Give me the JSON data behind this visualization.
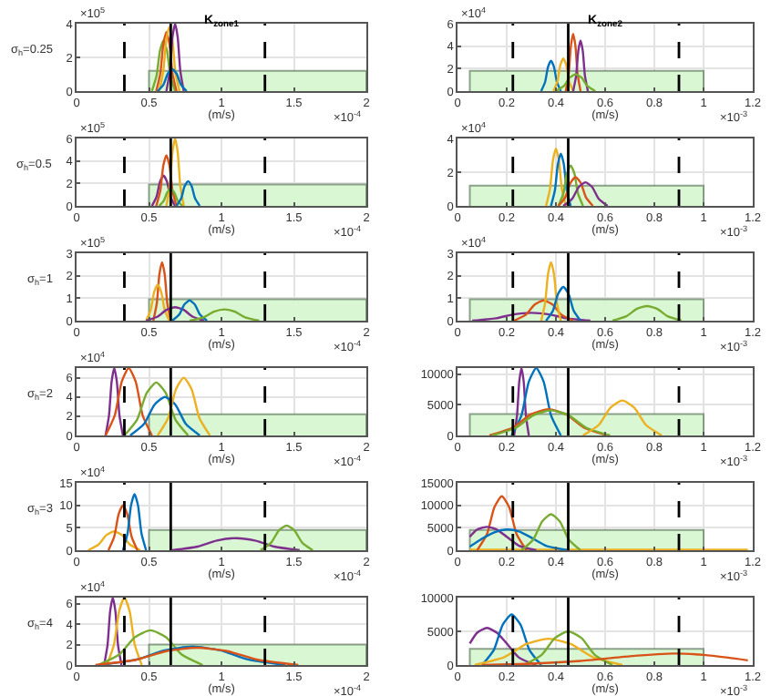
{
  "chart_data": [
    {
      "type": "line",
      "title": "K$_{zone1}$",
      "ylabel": "σ$_{h}$=0.25",
      "xlabel": "(m/s)",
      "annotations": [
        "×10$^{5}$",
        "×10$^{-4}$"
      ],
      "xlim": [
        0,
        2
      ],
      "xticks": [
        0,
        0.5,
        1,
        1.5,
        2
      ],
      "ylim": [
        0,
        4
      ],
      "yticks": [
        0,
        2,
        4
      ],
      "grid": true,
      "ref_lines": [
        {
          "axis": "x",
          "value": 0.33,
          "color": "#000000",
          "line_style": "dashed"
        },
        {
          "axis": "x",
          "value": 1.3,
          "color": "#000000",
          "line_style": "dashed"
        },
        {
          "axis": "x",
          "value": 0.65,
          "color": "#000000",
          "line_style": "solid"
        }
      ],
      "series": [
        {
          "type": "area",
          "color": "#d9f7d2",
          "x": [
            0.5,
            0.5,
            2,
            2
          ],
          "values": [
            0,
            1.2,
            1.2,
            0
          ]
        },
        {
          "color": "#77ac30",
          "x": [
            0.52,
            0.552,
            0.576,
            0.6,
            0.624,
            0.648,
            0.68
          ],
          "values": [
            0,
            0.9,
            2.4,
            3,
            2.4,
            0.9,
            0
          ]
        },
        {
          "color": "#d95319",
          "x": [
            0.55,
            0.578,
            0.599,
            0.62,
            0.641,
            0.662,
            0.69
          ],
          "values": [
            0,
            1.05,
            2.8,
            3.5,
            2.8,
            1.05,
            0
          ]
        },
        {
          "color": "#edb120",
          "x": [
            0.57,
            0.598,
            0.619,
            0.64,
            0.661,
            0.682,
            0.71
          ],
          "values": [
            0,
            1.14,
            3.04,
            3.8,
            3.04,
            1.14,
            0
          ]
        },
        {
          "color": "#7e2f8e",
          "x": [
            0.62,
            0.644,
            0.662,
            0.68,
            0.698,
            0.716,
            0.74
          ],
          "values": [
            0,
            1.2,
            3.2,
            4,
            3.2,
            1.2,
            0
          ]
        },
        {
          "color": "#0072bd",
          "x": [
            0.56,
            0.6,
            0.63,
            0.66,
            0.69,
            0.72,
            0.76
          ],
          "values": [
            0,
            0.39,
            1.04,
            1.3,
            1.04,
            0.39,
            0
          ]
        }
      ]
    },
    {
      "type": "line",
      "title": "K$_{zone2}$",
      "xlabel": "(m/s)",
      "annotations": [
        "×10$^{4}$",
        "×10$^{-3}$"
      ],
      "xlim": [
        0,
        1.2
      ],
      "xticks": [
        0,
        0.2,
        0.4,
        0.6,
        0.8,
        1,
        1.2
      ],
      "ylim": [
        0,
        6
      ],
      "yticks": [
        0,
        2,
        4,
        6
      ],
      "grid": true,
      "ref_lines": [
        {
          "axis": "x",
          "value": 0.225,
          "color": "#000000",
          "line_style": "dashed"
        },
        {
          "axis": "x",
          "value": 0.9,
          "color": "#000000",
          "line_style": "dashed"
        },
        {
          "axis": "x",
          "value": 0.45,
          "color": "#000000",
          "line_style": "solid"
        }
      ],
      "series": [
        {
          "type": "area",
          "color": "#d9f7d2",
          "x": [
            0.05,
            0.05,
            1,
            1
          ],
          "values": [
            0,
            1.8,
            1.8,
            0
          ]
        },
        {
          "color": "#0072bd",
          "x": [
            0.34,
            0.356,
            0.368,
            0.38,
            0.392,
            0.404,
            0.42
          ],
          "values": [
            0,
            0.81,
            2.16,
            2.7,
            2.16,
            0.81,
            0
          ]
        },
        {
          "color": "#edb120",
          "x": [
            0.39,
            0.406,
            0.418,
            0.43,
            0.442,
            0.454,
            0.47
          ],
          "values": [
            0,
            0.87,
            2.32,
            2.9,
            2.32,
            0.87,
            0
          ]
        },
        {
          "color": "#d95319",
          "x": [
            0.44,
            0.452,
            0.461,
            0.47,
            0.479,
            0.488,
            0.5
          ],
          "values": [
            0,
            1.53,
            4.08,
            5.1,
            4.08,
            1.53,
            0
          ]
        },
        {
          "color": "#7e2f8e",
          "x": [
            0.47,
            0.482,
            0.491,
            0.5,
            0.509,
            0.518,
            0.53
          ],
          "values": [
            0,
            1.35,
            3.6,
            4.5,
            3.6,
            1.35,
            0
          ]
        },
        {
          "color": "#77ac30",
          "x": [
            0.4,
            0.432,
            0.456,
            0.48,
            0.504,
            0.528,
            0.56
          ],
          "values": [
            0,
            0.45,
            1.2,
            1.5,
            1.2,
            0.45,
            0
          ]
        }
      ]
    },
    {
      "type": "line",
      "ylabel": "σ$_{h}$=0.5",
      "xlabel": "(m/s)",
      "annotations": [
        "×10$^{5}$",
        "×10$^{-4}$"
      ],
      "xlim": [
        0,
        2
      ],
      "xticks": [
        0,
        0.5,
        1,
        1.5,
        2
      ],
      "ylim": [
        0,
        6
      ],
      "yticks": [
        0,
        2,
        4,
        6
      ],
      "grid": true,
      "ref_lines": [
        {
          "axis": "x",
          "value": 0.33,
          "color": "#000000",
          "line_style": "dashed"
        },
        {
          "axis": "x",
          "value": 1.3,
          "color": "#000000",
          "line_style": "dashed"
        },
        {
          "axis": "x",
          "value": 0.65,
          "color": "#000000",
          "line_style": "solid"
        }
      ],
      "series": [
        {
          "type": "area",
          "color": "#d9f7d2",
          "x": [
            0.5,
            0.5,
            2,
            2
          ],
          "values": [
            0,
            1.9,
            1.9,
            0
          ]
        },
        {
          "color": "#7e2f8e",
          "x": [
            0.52,
            0.552,
            0.576,
            0.6,
            0.624,
            0.648,
            0.68
          ],
          "values": [
            0,
            0.81,
            2.16,
            2.7,
            2.16,
            0.81,
            0
          ]
        },
        {
          "color": "#d95319",
          "x": [
            0.55,
            0.578,
            0.599,
            0.62,
            0.641,
            0.662,
            0.69
          ],
          "values": [
            0,
            1.35,
            3.6,
            4.5,
            3.6,
            1.35,
            0
          ]
        },
        {
          "color": "#edb120",
          "x": [
            0.62,
            0.644,
            0.662,
            0.68,
            0.698,
            0.716,
            0.74
          ],
          "values": [
            0,
            1.8,
            4.8,
            6,
            4.8,
            1.8,
            0
          ]
        },
        {
          "color": "#77ac30",
          "x": [
            0.57,
            0.602,
            0.626,
            0.65,
            0.674,
            0.698,
            0.73
          ],
          "values": [
            0,
            0.45,
            1.2,
            1.5,
            1.2,
            0.45,
            0
          ]
        },
        {
          "color": "#0072bd",
          "x": [
            0.69,
            0.722,
            0.746,
            0.77,
            0.794,
            0.818,
            0.85
          ],
          "values": [
            0,
            0.66,
            1.76,
            2.2,
            1.76,
            0.66,
            0
          ]
        }
      ]
    },
    {
      "type": "line",
      "xlabel": "(m/s)",
      "annotations": [
        "×10$^{4}$",
        "×10$^{-3}$"
      ],
      "xlim": [
        0,
        1.2
      ],
      "xticks": [
        0,
        0.2,
        0.4,
        0.6,
        0.8,
        1,
        1.2
      ],
      "ylim": [
        0,
        4
      ],
      "yticks": [
        0,
        2,
        4
      ],
      "grid": true,
      "ref_lines": [
        {
          "axis": "x",
          "value": 0.225,
          "color": "#000000",
          "line_style": "dashed"
        },
        {
          "axis": "x",
          "value": 0.9,
          "color": "#000000",
          "line_style": "dashed"
        },
        {
          "axis": "x",
          "value": 0.45,
          "color": "#000000",
          "line_style": "solid"
        }
      ],
      "series": [
        {
          "type": "area",
          "color": "#d9f7d2",
          "x": [
            0.05,
            0.05,
            1,
            1
          ],
          "values": [
            0,
            1.2,
            1.2,
            0
          ]
        },
        {
          "color": "#edb120",
          "x": [
            0.36,
            0.376,
            0.388,
            0.4,
            0.412,
            0.424,
            0.44
          ],
          "values": [
            0,
            1.02,
            2.72,
            3.4,
            2.72,
            1.02,
            0
          ]
        },
        {
          "color": "#0072bd",
          "x": [
            0.38,
            0.396,
            0.408,
            0.42,
            0.432,
            0.444,
            0.46
          ],
          "values": [
            0,
            0.93,
            2.48,
            3.1,
            2.48,
            0.93,
            0
          ]
        },
        {
          "color": "#77ac30",
          "x": [
            0.41,
            0.43,
            0.445,
            0.46,
            0.475,
            0.49,
            0.51
          ],
          "values": [
            0,
            0.72,
            1.92,
            2.4,
            1.92,
            0.72,
            0
          ]
        },
        {
          "color": "#d95319",
          "x": [
            0.41,
            0.438,
            0.459,
            0.48,
            0.501,
            0.522,
            0.55
          ],
          "values": [
            0,
            0.51,
            1.36,
            1.7,
            1.36,
            0.51,
            0
          ]
        },
        {
          "color": "#7e2f8e",
          "x": [
            0.43,
            0.466,
            0.493,
            0.52,
            0.547,
            0.574,
            0.61
          ],
          "values": [
            0,
            0.42,
            1.12,
            1.4,
            1.12,
            0.42,
            0
          ]
        }
      ]
    },
    {
      "type": "line",
      "ylabel": "σ$_{h}$=1",
      "xlabel": "(m/s)",
      "annotations": [
        "×10$^{5}$",
        "×10$^{-4}$"
      ],
      "xlim": [
        0,
        2
      ],
      "xticks": [
        0,
        0.5,
        1,
        1.5,
        2
      ],
      "ylim": [
        0,
        3
      ],
      "yticks": [
        0,
        1,
        2,
        3
      ],
      "grid": true,
      "ref_lines": [
        {
          "axis": "x",
          "value": 0.33,
          "color": "#000000",
          "line_style": "dashed"
        },
        {
          "axis": "x",
          "value": 1.3,
          "color": "#000000",
          "line_style": "dashed"
        },
        {
          "axis": "x",
          "value": 0.65,
          "color": "#000000",
          "line_style": "solid"
        }
      ],
      "series": [
        {
          "type": "area",
          "color": "#d9f7d2",
          "x": [
            0.5,
            0.5,
            2,
            2
          ],
          "values": [
            0,
            0.95,
            0.95,
            0
          ]
        },
        {
          "color": "#d95319",
          "x": [
            0.53,
            0.554,
            0.572,
            0.59,
            0.608,
            0.626,
            0.65
          ],
          "values": [
            0,
            0.78,
            2.08,
            2.6,
            2.08,
            0.78,
            0
          ]
        },
        {
          "color": "#edb120",
          "x": [
            0.48,
            0.512,
            0.536,
            0.56,
            0.584,
            0.608,
            0.64
          ],
          "values": [
            0,
            0.48,
            1.28,
            1.6,
            1.28,
            0.48,
            0
          ]
        },
        {
          "color": "#7e2f8e",
          "x": [
            0.48,
            0.56,
            0.62,
            0.68,
            0.74,
            0.8,
            0.88
          ],
          "values": [
            0,
            0.18,
            0.48,
            0.6,
            0.48,
            0.18,
            0
          ]
        },
        {
          "color": "#0072bd",
          "x": [
            0.66,
            0.708,
            0.744,
            0.78,
            0.816,
            0.852,
            0.9
          ],
          "values": [
            0,
            0.27,
            0.72,
            0.9,
            0.72,
            0.27,
            0
          ]
        },
        {
          "color": "#77ac30",
          "x": [
            0.78,
            0.876,
            0.948,
            1.02,
            1.092,
            1.164,
            1.26
          ],
          "values": [
            0,
            0.15,
            0.4,
            0.5,
            0.4,
            0.15,
            0
          ]
        }
      ]
    },
    {
      "type": "line",
      "xlabel": "(m/s)",
      "annotations": [
        "×10$^{4}$",
        "×10$^{-3}$"
      ],
      "xlim": [
        0,
        1.2
      ],
      "xticks": [
        0,
        0.2,
        0.4,
        0.6,
        0.8,
        1,
        1.2
      ],
      "ylim": [
        0,
        3
      ],
      "yticks": [
        0,
        1,
        2,
        3
      ],
      "grid": true,
      "ref_lines": [
        {
          "axis": "x",
          "value": 0.225,
          "color": "#000000",
          "line_style": "dashed"
        },
        {
          "axis": "x",
          "value": 0.9,
          "color": "#000000",
          "line_style": "dashed"
        },
        {
          "axis": "x",
          "value": 0.45,
          "color": "#000000",
          "line_style": "solid"
        }
      ],
      "series": [
        {
          "type": "area",
          "color": "#d9f7d2",
          "x": [
            0.05,
            0.05,
            1,
            1
          ],
          "values": [
            0,
            0.95,
            0.95,
            0
          ]
        },
        {
          "color": "#7e2f8e",
          "x": [
            0.06,
            0.156,
            0.228,
            0.3,
            0.372,
            0.444,
            0.54
          ],
          "values": [
            0,
            0.105,
            0.28,
            0.35,
            0.28,
            0.105,
            0
          ]
        },
        {
          "color": "#d95319",
          "x": [
            0.23,
            0.278,
            0.314,
            0.35,
            0.386,
            0.422,
            0.47
          ],
          "values": [
            0,
            0.27,
            0.72,
            0.9,
            0.72,
            0.27,
            0
          ]
        },
        {
          "color": "#edb120",
          "x": [
            0.34,
            0.356,
            0.368,
            0.38,
            0.392,
            0.404,
            0.42
          ],
          "values": [
            0,
            0.78,
            2.08,
            2.6,
            2.08,
            0.78,
            0
          ]
        },
        {
          "color": "#0072bd",
          "x": [
            0.36,
            0.388,
            0.409,
            0.43,
            0.451,
            0.472,
            0.5
          ],
          "values": [
            0,
            0.45,
            1.2,
            1.5,
            1.2,
            0.45,
            0
          ]
        },
        {
          "color": "#77ac30",
          "x": [
            0.63,
            0.686,
            0.728,
            0.77,
            0.812,
            0.854,
            0.91
          ],
          "values": [
            0,
            0.195,
            0.52,
            0.65,
            0.52,
            0.195,
            0
          ]
        }
      ]
    },
    {
      "type": "line",
      "ylabel": "σ$_{h}$=2",
      "xlabel": "(m/s)",
      "annotations": [
        "×10$^{4}$",
        "×10$^{-4}$"
      ],
      "xlim": [
        0,
        2
      ],
      "xticks": [
        0,
        0.5,
        1,
        1.5,
        2
      ],
      "ylim": [
        0,
        7
      ],
      "yticks": [
        0,
        2,
        4,
        6
      ],
      "grid": true,
      "ref_lines": [
        {
          "axis": "x",
          "value": 0.33,
          "color": "#000000",
          "line_style": "dashed"
        },
        {
          "axis": "x",
          "value": 1.3,
          "color": "#000000",
          "line_style": "dashed"
        },
        {
          "axis": "x",
          "value": 0.65,
          "color": "#000000",
          "line_style": "solid"
        }
      ],
      "series": [
        {
          "type": "area",
          "color": "#d9f7d2",
          "x": [
            0.5,
            0.5,
            2,
            2
          ],
          "values": [
            0,
            2.2,
            2.2,
            0
          ]
        },
        {
          "color": "#7e2f8e",
          "x": [
            0.2,
            0.224,
            0.242,
            0.26,
            0.278,
            0.296,
            0.32
          ],
          "values": [
            0,
            2.1,
            5.6,
            7,
            5.6,
            2.1,
            0
          ]
        },
        {
          "color": "#d95319",
          "x": [
            0.2,
            0.264,
            0.312,
            0.36,
            0.408,
            0.456,
            0.52
          ],
          "values": [
            0,
            2.1,
            5.6,
            7,
            5.6,
            2.1,
            0
          ]
        },
        {
          "color": "#77ac30",
          "x": [
            0.33,
            0.418,
            0.484,
            0.55,
            0.616,
            0.682,
            0.77
          ],
          "values": [
            0,
            1.65,
            4.4,
            5.5,
            4.4,
            1.65,
            0
          ]
        },
        {
          "color": "#0072bd",
          "x": [
            0.37,
            0.466,
            0.538,
            0.61,
            0.682,
            0.754,
            0.85
          ],
          "values": [
            0,
            1.2,
            3.2,
            4,
            3.2,
            1.2,
            0
          ]
        },
        {
          "color": "#edb120",
          "x": [
            0.56,
            0.632,
            0.686,
            0.74,
            0.794,
            0.848,
            0.92
          ],
          "values": [
            0,
            1.8,
            4.8,
            6,
            4.8,
            1.8,
            0
          ]
        }
      ]
    },
    {
      "type": "line",
      "xlabel": "(m/s)",
      "annotations": [
        "×10$^{-3}$"
      ],
      "xlim": [
        0,
        1.2
      ],
      "xticks": [
        0,
        0.2,
        0.4,
        0.6,
        0.8,
        1,
        1.2
      ],
      "ylim": [
        0,
        11000
      ],
      "yticks": [
        0,
        5000,
        10000
      ],
      "grid": true,
      "ref_lines": [
        {
          "axis": "x",
          "value": 0.225,
          "color": "#000000",
          "line_style": "dashed"
        },
        {
          "axis": "x",
          "value": 0.9,
          "color": "#000000",
          "line_style": "dashed"
        },
        {
          "axis": "x",
          "value": 0.45,
          "color": "#000000",
          "line_style": "solid"
        }
      ],
      "series": [
        {
          "type": "area",
          "color": "#d9f7d2",
          "x": [
            0.05,
            0.05,
            1,
            1
          ],
          "values": [
            0,
            3500,
            3500,
            0
          ]
        },
        {
          "color": "#7e2f8e",
          "x": [
            0.23,
            0.242,
            0.251,
            0.26,
            0.269,
            0.278,
            0.29
          ],
          "values": [
            0,
            3300,
            8800,
            11000,
            8800,
            3300,
            0
          ]
        },
        {
          "color": "#0072bd",
          "x": [
            0.22,
            0.26,
            0.29,
            0.32,
            0.35,
            0.38,
            0.42
          ],
          "values": [
            0,
            3300,
            8800,
            11000,
            8800,
            3300,
            0
          ]
        },
        {
          "color": "#d95319",
          "x": [
            0.13,
            0.226,
            0.298,
            0.37,
            0.442,
            0.514,
            0.61
          ],
          "values": [
            0,
            1290,
            3440,
            4300,
            3440,
            1290,
            0
          ]
        },
        {
          "color": "#77ac30",
          "x": [
            0.14,
            0.236,
            0.308,
            0.38,
            0.452,
            0.524,
            0.62
          ],
          "values": [
            0,
            1230,
            3280,
            4100,
            3280,
            1230,
            0
          ]
        },
        {
          "color": "#edb120",
          "x": [
            0.51,
            0.574,
            0.622,
            0.67,
            0.718,
            0.766,
            0.83
          ],
          "values": [
            0,
            1710,
            4560,
            5700,
            4560,
            1710,
            0
          ]
        }
      ]
    },
    {
      "type": "line",
      "ylabel": "σ$_{h}$=3",
      "xlabel": "(m/s)",
      "annotations": [
        "×10$^{4}$",
        "×10$^{-4}$"
      ],
      "xlim": [
        0,
        2
      ],
      "xticks": [
        0,
        0.5,
        1,
        1.5,
        2
      ],
      "ylim": [
        0,
        15
      ],
      "yticks": [
        0,
        5,
        10,
        15
      ],
      "grid": true,
      "ref_lines": [
        {
          "axis": "x",
          "value": 0.33,
          "color": "#000000",
          "line_style": "dashed"
        },
        {
          "axis": "x",
          "value": 1.3,
          "color": "#000000",
          "line_style": "dashed"
        },
        {
          "axis": "x",
          "value": 0.65,
          "color": "#000000",
          "line_style": "solid"
        }
      ],
      "series": [
        {
          "type": "area",
          "color": "#d9f7d2",
          "x": [
            0.5,
            0.5,
            2,
            2
          ],
          "values": [
            0,
            4.5,
            4.5,
            0
          ]
        },
        {
          "color": "#edb120",
          "x": [
            0.08,
            0.152,
            0.206,
            0.26,
            0.314,
            0.368,
            0.44
          ],
          "values": [
            0,
            1.26,
            3.36,
            4.2,
            3.36,
            1.26,
            0
          ]
        },
        {
          "color": "#d95319",
          "x": [
            0.22,
            0.26,
            0.29,
            0.32,
            0.35,
            0.38,
            0.42
          ],
          "values": [
            0,
            3,
            8,
            10,
            8,
            3,
            0
          ]
        },
        {
          "color": "#0072bd",
          "x": [
            0.32,
            0.352,
            0.376,
            0.4,
            0.424,
            0.448,
            0.48
          ],
          "values": [
            0,
            3.75,
            10,
            12.5,
            10,
            3.75,
            0
          ]
        },
        {
          "color": "#7e2f8e",
          "x": [
            0.66,
            0.836,
            0.968,
            1.1,
            1.232,
            1.364,
            1.54
          ],
          "values": [
            0,
            0.81,
            2.16,
            2.7,
            2.16,
            0.81,
            0
          ]
        },
        {
          "color": "#77ac30",
          "x": [
            1.27,
            1.342,
            1.396,
            1.45,
            1.504,
            1.558,
            1.63
          ],
          "values": [
            0,
            1.65,
            4.4,
            5.5,
            4.4,
            1.65,
            0
          ]
        }
      ]
    },
    {
      "type": "line",
      "xlabel": "(m/s)",
      "annotations": [
        "×10$^{-3}$"
      ],
      "xlim": [
        0,
        1.2
      ],
      "xticks": [
        0,
        0.2,
        0.4,
        0.6,
        0.8,
        1,
        1.2
      ],
      "ylim": [
        0,
        15000
      ],
      "yticks": [
        0,
        5000,
        10000,
        15000
      ],
      "grid": true,
      "ref_lines": [
        {
          "axis": "x",
          "value": 0.225,
          "color": "#000000",
          "line_style": "dashed"
        },
        {
          "axis": "x",
          "value": 0.9,
          "color": "#000000",
          "line_style": "dashed"
        },
        {
          "axis": "x",
          "value": 0.45,
          "color": "#000000",
          "line_style": "solid"
        }
      ],
      "series": [
        {
          "type": "area",
          "color": "#d9f7d2",
          "x": [
            0.05,
            0.05,
            1,
            1
          ],
          "values": [
            0,
            4500,
            4500,
            0
          ]
        },
        {
          "color": "#edb120",
          "x": [
            0.05,
            0.6,
            1.18
          ],
          "values": [
            100,
            100,
            100
          ]
        },
        {
          "color": "#d95319",
          "x": [
            0.08,
            0.12,
            0.15,
            0.18,
            0.21,
            0.24,
            0.28
          ],
          "values": [
            0,
            3600,
            9600,
            12000,
            9600,
            3600,
            0
          ]
        },
        {
          "color": "#7e2f8e",
          "x": [
            0.05,
            0.08,
            0.12,
            0.16,
            0.2,
            0.25,
            0.32
          ],
          "values": [
            3000,
            4600,
            5200,
            4600,
            3000,
            1000,
            0
          ]
        },
        {
          "color": "#0072bd",
          "x": [
            0.05,
            0.1,
            0.15,
            0.2,
            0.25,
            0.3,
            0.36,
            0.45
          ],
          "values": [
            800,
            2600,
            4000,
            4600,
            4200,
            2800,
            1000,
            0
          ]
        },
        {
          "color": "#77ac30",
          "x": [
            0.26,
            0.308,
            0.344,
            0.38,
            0.416,
            0.452,
            0.5
          ],
          "values": [
            0,
            2400,
            6400,
            8000,
            6400,
            2400,
            0
          ]
        }
      ]
    },
    {
      "type": "line",
      "ylabel": "σ$_{h}$=4",
      "xlabel": "(m/s)",
      "annotations": [
        "×10$^{4}$",
        "×10$^{-4}$"
      ],
      "xlim": [
        0,
        2
      ],
      "xticks": [
        0,
        0.5,
        1,
        1.5,
        2
      ],
      "ylim": [
        0,
        6.6
      ],
      "yticks": [
        0,
        2,
        4,
        6
      ],
      "grid": true,
      "ref_lines": [
        {
          "axis": "x",
          "value": 0.33,
          "color": "#000000",
          "line_style": "dashed"
        },
        {
          "axis": "x",
          "value": 1.3,
          "color": "#000000",
          "line_style": "dashed"
        },
        {
          "axis": "x",
          "value": 0.65,
          "color": "#000000",
          "line_style": "solid"
        }
      ],
      "series": [
        {
          "type": "area",
          "color": "#d9f7d2",
          "x": [
            0.5,
            0.5,
            2,
            2
          ],
          "values": [
            0,
            2,
            2,
            0
          ]
        },
        {
          "color": "#7e2f8e",
          "x": [
            0.19,
            0.214,
            0.232,
            0.25,
            0.268,
            0.286,
            0.31
          ],
          "values": [
            0,
            1.98,
            5.28,
            6.6,
            5.28,
            1.98,
            0
          ]
        },
        {
          "color": "#edb120",
          "x": [
            0.21,
            0.258,
            0.294,
            0.33,
            0.366,
            0.402,
            0.45
          ],
          "values": [
            0,
            1.98,
            5.28,
            6.6,
            5.28,
            1.98,
            0
          ]
        },
        {
          "color": "#77ac30",
          "x": [
            0.15,
            0.294,
            0.402,
            0.51,
            0.618,
            0.726,
            0.87
          ],
          "values": [
            0,
            1.02,
            2.72,
            3.4,
            2.72,
            1.02,
            0
          ]
        },
        {
          "color": "#0072bd",
          "x": [
            0.16,
            0.416,
            0.608,
            0.8,
            0.992,
            1.184,
            1.44
          ],
          "values": [
            0,
            0.54,
            1.44,
            1.8,
            1.44,
            0.54,
            0
          ]
        },
        {
          "color": "#d95319",
          "x": [
            0.13,
            0.41,
            0.62,
            0.83,
            1.04,
            1.25,
            1.53
          ],
          "values": [
            0,
            0.51,
            1.36,
            1.7,
            1.36,
            0.51,
            0
          ]
        }
      ]
    },
    {
      "type": "line",
      "xlabel": "(m/s)",
      "annotations": [
        "×10$^{-3}$"
      ],
      "xlim": [
        0,
        1.2
      ],
      "xticks": [
        0,
        0.2,
        0.4,
        0.6,
        0.8,
        1,
        1.2
      ],
      "ylim": [
        0,
        10000
      ],
      "yticks": [
        0,
        5000,
        10000
      ],
      "grid": true,
      "ref_lines": [
        {
          "axis": "x",
          "value": 0.225,
          "color": "#000000",
          "line_style": "dashed"
        },
        {
          "axis": "x",
          "value": 0.9,
          "color": "#000000",
          "line_style": "dashed"
        },
        {
          "axis": "x",
          "value": 0.45,
          "color": "#000000",
          "line_style": "solid"
        }
      ],
      "series": [
        {
          "type": "area",
          "color": "#d9f7d2",
          "x": [
            0.05,
            0.05,
            1,
            1
          ],
          "values": [
            0,
            2400,
            2400,
            0
          ]
        },
        {
          "color": "#7e2f8e",
          "x": [
            0.05,
            0.08,
            0.12,
            0.16,
            0.2,
            0.25,
            0.32
          ],
          "values": [
            3200,
            4800,
            5500,
            4800,
            3200,
            1100,
            0
          ]
        },
        {
          "color": "#0072bd",
          "x": [
            0.1,
            0.148,
            0.184,
            0.22,
            0.256,
            0.292,
            0.34
          ],
          "values": [
            0,
            2250,
            6000,
            7500,
            6000,
            2250,
            0
          ]
        },
        {
          "color": "#edb120",
          "x": [
            0.07,
            0.19,
            0.28,
            0.37,
            0.46,
            0.55,
            0.67
          ],
          "values": [
            0,
            1170,
            3120,
            3900,
            3120,
            1170,
            0
          ]
        },
        {
          "color": "#77ac30",
          "x": [
            0.27,
            0.342,
            0.396,
            0.45,
            0.504,
            0.558,
            0.63
          ],
          "values": [
            0,
            1500,
            4000,
            5000,
            4000,
            1500,
            0
          ]
        },
        {
          "color": "#d95319",
          "x": [
            0.1,
            0.3,
            0.5,
            0.7,
            0.88,
            1,
            1.1,
            1.18
          ],
          "values": [
            0,
            200,
            600,
            1300,
            1700,
            1500,
            1100,
            700
          ]
        }
      ]
    }
  ]
}
